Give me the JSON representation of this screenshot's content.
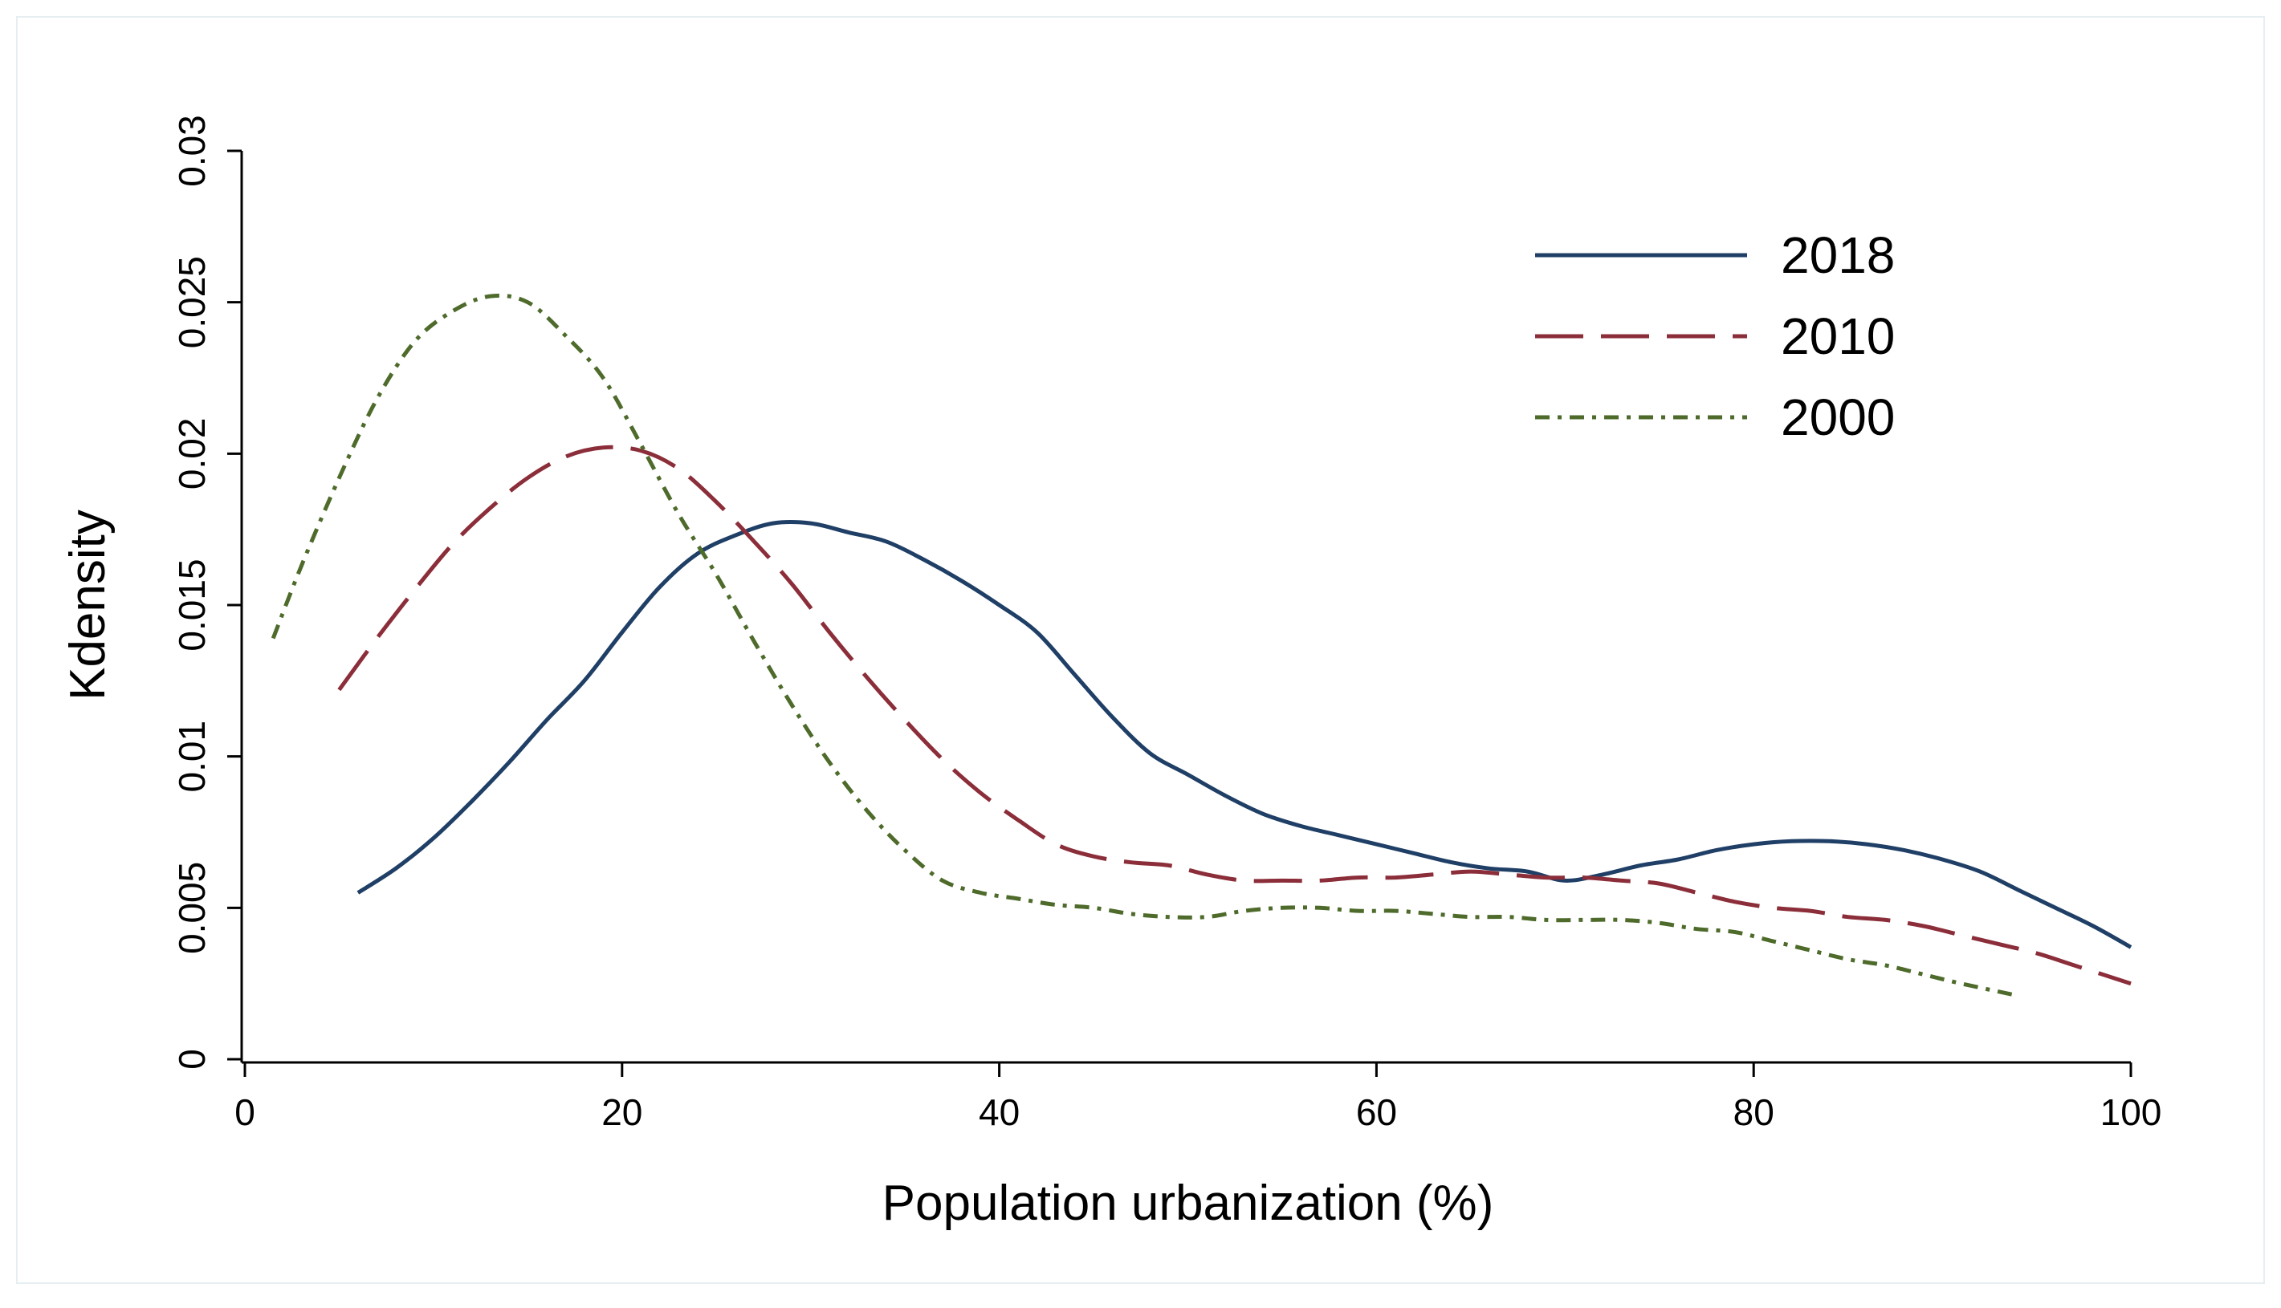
{
  "chart_data": {
    "type": "line",
    "title": "",
    "xlabel": "Population urbanization (%)",
    "ylabel": "Kdensity",
    "xlim": [
      0,
      100
    ],
    "ylim": [
      0,
      0.03
    ],
    "xticks": [
      "0",
      "20",
      "40",
      "60",
      "80",
      "100"
    ],
    "xtick_values": [
      0,
      20,
      40,
      60,
      80,
      100
    ],
    "yticks": [
      "0",
      "0.005",
      "0.01",
      "0.015",
      "0.02",
      "0.025",
      "0.03"
    ],
    "ytick_values": [
      0,
      0.005,
      0.01,
      0.015,
      0.02,
      0.025,
      0.03
    ],
    "grid": false,
    "legend_position": "top-right",
    "series": [
      {
        "name": "2018",
        "color": "#1f3f66",
        "style": "solid",
        "x": [
          6,
          8,
          10,
          12,
          14,
          16,
          18,
          20,
          22,
          24,
          26,
          28,
          30,
          32,
          34,
          36,
          38,
          40,
          42,
          44,
          46,
          48,
          50,
          52,
          54,
          56,
          58,
          60,
          62,
          64,
          66,
          68,
          70,
          72,
          74,
          76,
          78,
          80,
          82,
          84,
          86,
          88,
          90,
          92,
          94,
          96,
          98,
          100
        ],
        "y": [
          0.0055,
          0.0063,
          0.0073,
          0.0085,
          0.0098,
          0.0112,
          0.0125,
          0.0141,
          0.0156,
          0.0167,
          0.0173,
          0.0177,
          0.0177,
          0.0174,
          0.0171,
          0.0165,
          0.0158,
          0.015,
          0.0141,
          0.0127,
          0.0113,
          0.0101,
          0.0094,
          0.0087,
          0.0081,
          0.0077,
          0.0074,
          0.0071,
          0.0068,
          0.0065,
          0.0063,
          0.0062,
          0.0059,
          0.0061,
          0.0064,
          0.0066,
          0.0069,
          0.0071,
          0.0072,
          0.0072,
          0.0071,
          0.0069,
          0.0066,
          0.0062,
          0.0056,
          0.005,
          0.0044,
          0.0037
        ]
      },
      {
        "name": "2010",
        "color": "#8b2e3a",
        "style": "dashed",
        "x": [
          5,
          7,
          9,
          11,
          13,
          15,
          17,
          19,
          21,
          23,
          25,
          27,
          29,
          31,
          33,
          35,
          37,
          39,
          41,
          43,
          45,
          47,
          49,
          51,
          53,
          55,
          57,
          59,
          61,
          63,
          65,
          67,
          69,
          71,
          73,
          75,
          77,
          79,
          81,
          83,
          85,
          87,
          89,
          91,
          93,
          95,
          97,
          100
        ],
        "y": [
          0.0122,
          0.0139,
          0.0155,
          0.017,
          0.0182,
          0.0192,
          0.0199,
          0.0202,
          0.0201,
          0.0195,
          0.0184,
          0.0171,
          0.0157,
          0.0141,
          0.0126,
          0.0112,
          0.0099,
          0.0088,
          0.0079,
          0.0071,
          0.0067,
          0.0065,
          0.0064,
          0.0061,
          0.0059,
          0.0059,
          0.0059,
          0.006,
          0.006,
          0.0061,
          0.0062,
          0.0061,
          0.006,
          0.006,
          0.0059,
          0.0058,
          0.0055,
          0.0052,
          0.005,
          0.0049,
          0.0047,
          0.0046,
          0.0044,
          0.0041,
          0.0038,
          0.0035,
          0.0031,
          0.0025
        ]
      },
      {
        "name": "2000",
        "color": "#4e6b2b",
        "style": "dash-dot",
        "x": [
          1.5,
          3,
          5,
          7,
          9,
          11,
          13,
          15,
          17,
          19,
          21,
          23,
          25,
          27,
          29,
          31,
          33,
          35,
          37,
          39,
          41,
          43,
          45,
          47,
          49,
          51,
          53,
          55,
          57,
          59,
          61,
          63,
          65,
          67,
          69,
          71,
          73,
          75,
          77,
          79,
          81,
          83,
          85,
          87,
          89,
          91,
          94
        ],
        "y": [
          0.0139,
          0.0163,
          0.0192,
          0.0218,
          0.0237,
          0.0247,
          0.0252,
          0.025,
          0.0239,
          0.0225,
          0.0203,
          0.018,
          0.016,
          0.0138,
          0.0117,
          0.0098,
          0.0082,
          0.0069,
          0.0059,
          0.0055,
          0.0053,
          0.0051,
          0.005,
          0.0048,
          0.0047,
          0.0047,
          0.0049,
          0.005,
          0.005,
          0.0049,
          0.0049,
          0.0048,
          0.0047,
          0.0047,
          0.0046,
          0.0046,
          0.0046,
          0.0045,
          0.0043,
          0.0042,
          0.0039,
          0.0036,
          0.0033,
          0.0031,
          0.0028,
          0.0025,
          0.0021
        ]
      }
    ]
  }
}
